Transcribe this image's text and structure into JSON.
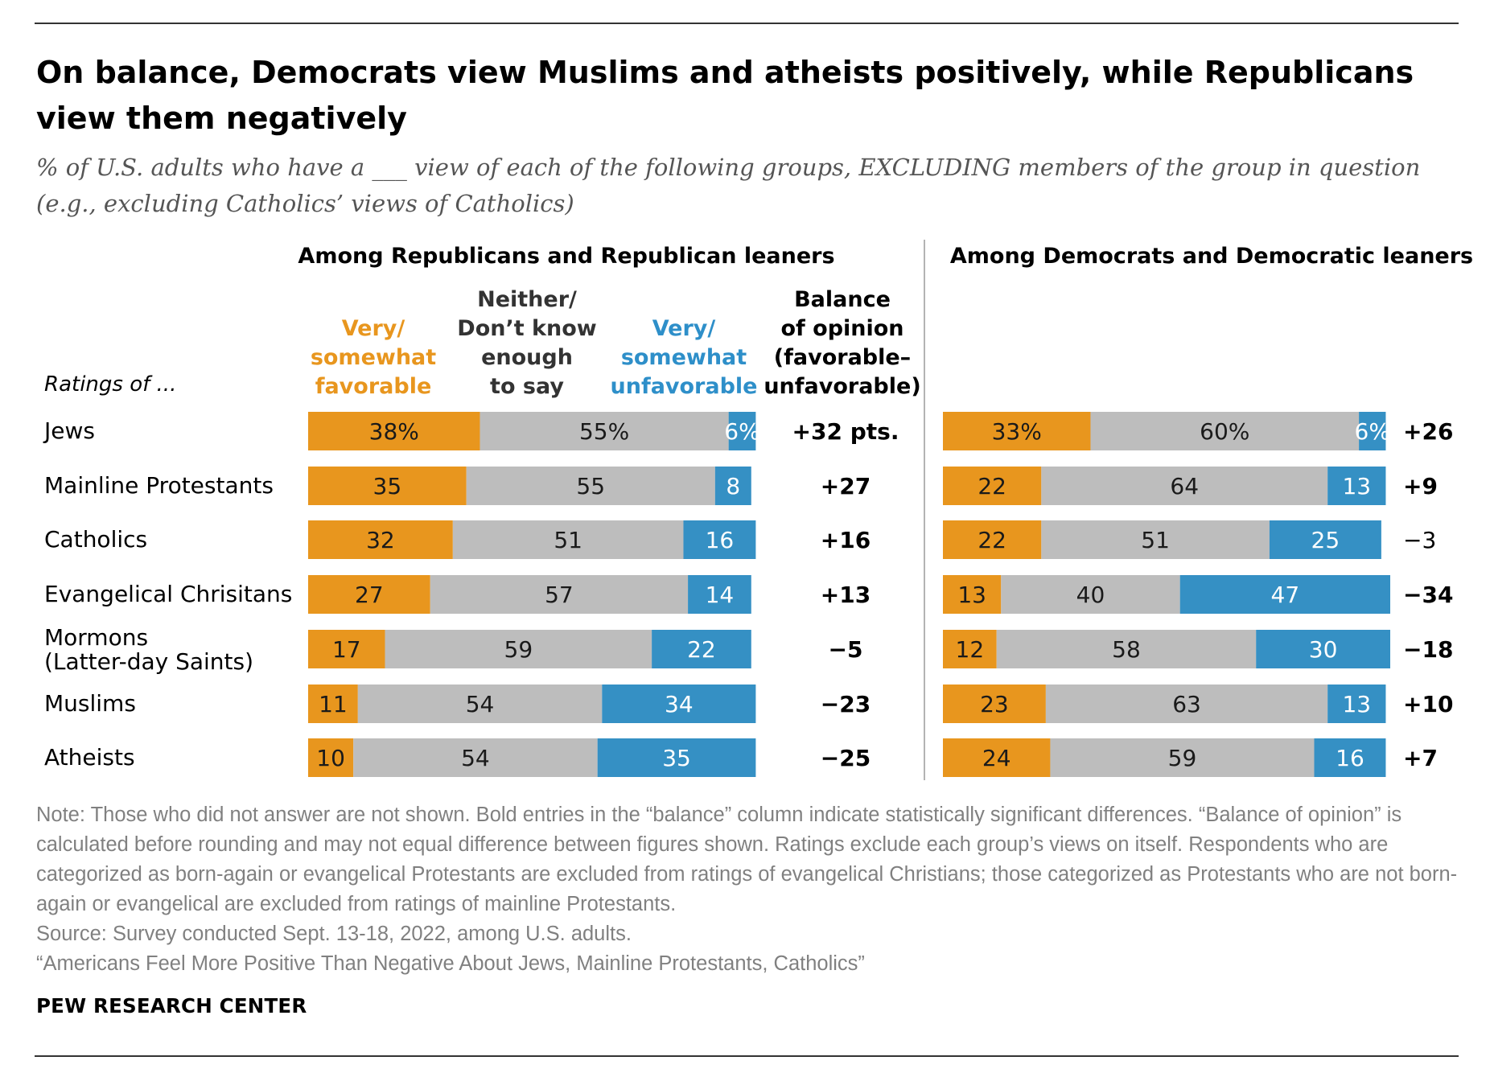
{
  "colors": {
    "favorable": "#E8961E",
    "neither": "#BDBDBD",
    "unfavorable": "#3590C4",
    "header_favorable": "#E8961E",
    "header_unfavorable": "#2E8FC9"
  },
  "title": "On balance, Democrats view Muslims and atheists positively, while Republicans view them negatively",
  "subtitle": "% of U.S. adults who have a ___ view of each of the following groups, EXCLUDING members of the group in question (e.g., excluding Catholics’ views of Catholics)",
  "chart_data": {
    "type": "bar",
    "orientation": "horizontal-stacked",
    "row_header": "Ratings of ...",
    "categories": [
      [
        "Jews"
      ],
      [
        "Mainline Protestants"
      ],
      [
        "Catholics"
      ],
      [
        "Evangelical Chrisitans"
      ],
      [
        "Mormons",
        "(Latter-day Saints)"
      ],
      [
        "Muslims"
      ],
      [
        "Atheists"
      ]
    ],
    "column_headers": {
      "favorable": [
        "Very/",
        "somewhat",
        "favorable"
      ],
      "neither": [
        "Neither/",
        "Don’t know",
        "enough",
        "to say"
      ],
      "unfavorable": [
        "Very/",
        "somewhat",
        "unfavorable"
      ],
      "balance": [
        "Balance",
        "of opinion",
        "(favorable–",
        "unfavorable)"
      ]
    },
    "panels": [
      {
        "name": "Among Republicans and Republican leaners",
        "favorable": [
          38,
          35,
          32,
          27,
          17,
          11,
          10
        ],
        "neither": [
          55,
          55,
          51,
          57,
          59,
          54,
          54
        ],
        "unfavorable": [
          6,
          8,
          16,
          14,
          22,
          34,
          35
        ],
        "balance": [
          32,
          27,
          16,
          13,
          -5,
          -23,
          -25
        ],
        "balance_bold": [
          true,
          true,
          true,
          true,
          true,
          true,
          true
        ],
        "labels": {
          "favorable": [
            "38%",
            "35",
            "32",
            "27",
            "17",
            "11",
            "10"
          ],
          "neither": [
            "55%",
            "55",
            "51",
            "57",
            "59",
            "54",
            "54"
          ],
          "unfavorable": [
            "6%",
            "8",
            "16",
            "14",
            "22",
            "34",
            "35"
          ],
          "balance": [
            "+32 pts.",
            "+27",
            "+16",
            "+13",
            "−5",
            "−23",
            "−25"
          ]
        }
      },
      {
        "name": "Among Democrats and Democratic leaners",
        "favorable": [
          33,
          22,
          22,
          13,
          12,
          23,
          24
        ],
        "neither": [
          60,
          64,
          51,
          40,
          58,
          63,
          59
        ],
        "unfavorable": [
          6,
          13,
          25,
          47,
          30,
          13,
          16
        ],
        "balance": [
          26,
          9,
          -3,
          -34,
          -18,
          10,
          7
        ],
        "balance_bold": [
          true,
          true,
          false,
          true,
          true,
          true,
          true
        ],
        "labels": {
          "favorable": [
            "33%",
            "22",
            "22",
            "13",
            "12",
            "23",
            "24"
          ],
          "neither": [
            "60%",
            "64",
            "51",
            "40",
            "58",
            "63",
            "59"
          ],
          "unfavorable": [
            "6%",
            "13",
            "25",
            "47",
            "30",
            "13",
            "16"
          ],
          "balance": [
            "+26",
            "+9",
            "−3",
            "−34",
            "−18",
            "+10",
            "+7"
          ]
        }
      }
    ],
    "xlim": [
      0,
      100
    ]
  },
  "notes": [
    "Note: Those who did not answer are not shown. Bold entries in the “balance” column indicate statistically significant differences. “Balance of opinion” is calculated before rounding and may not equal difference between figures shown. Ratings exclude each group’s views on itself. Respondents who are categorized as born-again or evangelical Protestants are excluded from ratings of evangelical Christians; those categorized as Protestants who are not born-again or evangelical are excluded from ratings of mainline Protestants.",
    "Source: Survey conducted Sept. 13-18, 2022, among U.S. adults.",
    "“Americans Feel More Positive Than Negative About Jews, Mainline Protestants, Catholics”"
  ],
  "branding": "PEW RESEARCH CENTER"
}
